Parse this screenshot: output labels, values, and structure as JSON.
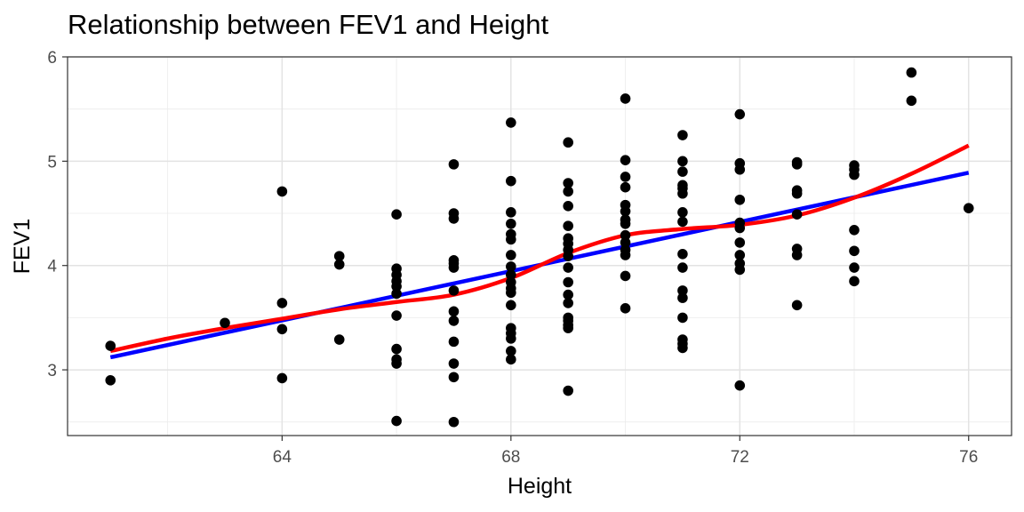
{
  "chart_data": {
    "type": "scatter",
    "title": "Relationship between FEV1 and Height",
    "xlabel": "Height",
    "ylabel": "FEV1",
    "xlim": [
      60.25,
      76.75
    ],
    "ylim": [
      2.37,
      6.0
    ],
    "xticks": [
      64,
      68,
      72,
      76
    ],
    "yticks": [
      3,
      4,
      5,
      6
    ],
    "grid": true,
    "legend": "none",
    "points": [
      [
        61,
        3.23
      ],
      [
        61,
        2.9
      ],
      [
        63,
        3.45
      ],
      [
        64,
        4.71
      ],
      [
        64,
        3.64
      ],
      [
        64,
        3.39
      ],
      [
        64,
        2.92
      ],
      [
        65,
        4.09
      ],
      [
        65,
        4.01
      ],
      [
        65,
        3.29
      ],
      [
        66,
        4.49
      ],
      [
        66,
        3.97
      ],
      [
        66,
        3.91
      ],
      [
        66,
        3.85
      ],
      [
        66,
        3.8
      ],
      [
        66,
        3.73
      ],
      [
        66,
        3.52
      ],
      [
        66,
        3.2
      ],
      [
        66,
        3.1
      ],
      [
        66,
        3.06
      ],
      [
        66,
        2.51
      ],
      [
        67,
        4.97
      ],
      [
        67,
        4.5
      ],
      [
        67,
        4.45
      ],
      [
        67,
        4.05
      ],
      [
        67,
        4.02
      ],
      [
        67,
        3.98
      ],
      [
        67,
        3.76
      ],
      [
        67,
        3.56
      ],
      [
        67,
        3.47
      ],
      [
        67,
        3.27
      ],
      [
        67,
        3.06
      ],
      [
        67,
        2.93
      ],
      [
        67,
        2.5
      ],
      [
        68,
        5.37
      ],
      [
        68,
        4.81
      ],
      [
        68,
        4.51
      ],
      [
        68,
        4.4
      ],
      [
        68,
        4.3
      ],
      [
        68,
        4.25
      ],
      [
        68,
        4.1
      ],
      [
        68,
        3.99
      ],
      [
        68,
        3.91
      ],
      [
        68,
        3.84
      ],
      [
        68,
        3.78
      ],
      [
        68,
        3.74
      ],
      [
        68,
        3.62
      ],
      [
        68,
        3.4
      ],
      [
        68,
        3.35
      ],
      [
        68,
        3.3
      ],
      [
        68,
        3.18
      ],
      [
        68,
        3.1
      ],
      [
        69,
        5.18
      ],
      [
        69,
        4.79
      ],
      [
        69,
        4.71
      ],
      [
        69,
        4.57
      ],
      [
        69,
        4.38
      ],
      [
        69,
        4.26
      ],
      [
        69,
        4.21
      ],
      [
        69,
        4.15
      ],
      [
        69,
        4.09
      ],
      [
        69,
        3.98
      ],
      [
        69,
        3.84
      ],
      [
        69,
        3.72
      ],
      [
        69,
        3.64
      ],
      [
        69,
        3.5
      ],
      [
        69,
        3.47
      ],
      [
        69,
        3.43
      ],
      [
        69,
        3.4
      ],
      [
        69,
        2.8
      ],
      [
        70,
        5.6
      ],
      [
        70,
        5.01
      ],
      [
        70,
        4.85
      ],
      [
        70,
        4.75
      ],
      [
        70,
        4.58
      ],
      [
        70,
        4.52
      ],
      [
        70,
        4.44
      ],
      [
        70,
        4.4
      ],
      [
        70,
        4.29
      ],
      [
        70,
        4.22
      ],
      [
        70,
        4.15
      ],
      [
        70,
        4.1
      ],
      [
        70,
        3.9
      ],
      [
        70,
        3.59
      ],
      [
        71,
        5.25
      ],
      [
        71,
        5.0
      ],
      [
        71,
        4.9
      ],
      [
        71,
        4.77
      ],
      [
        71,
        4.74
      ],
      [
        71,
        4.69
      ],
      [
        71,
        4.51
      ],
      [
        71,
        4.42
      ],
      [
        71,
        4.11
      ],
      [
        71,
        3.98
      ],
      [
        71,
        3.76
      ],
      [
        71,
        3.69
      ],
      [
        71,
        3.5
      ],
      [
        71,
        3.29
      ],
      [
        71,
        3.25
      ],
      [
        71,
        3.21
      ],
      [
        72,
        5.45
      ],
      [
        72,
        4.98
      ],
      [
        72,
        4.92
      ],
      [
        72,
        4.63
      ],
      [
        72,
        4.41
      ],
      [
        72,
        4.36
      ],
      [
        72,
        4.22
      ],
      [
        72,
        4.1
      ],
      [
        72,
        4.02
      ],
      [
        72,
        3.96
      ],
      [
        72,
        2.85
      ],
      [
        73,
        4.99
      ],
      [
        73,
        4.97
      ],
      [
        73,
        4.72
      ],
      [
        73,
        4.69
      ],
      [
        73,
        4.49
      ],
      [
        73,
        4.16
      ],
      [
        73,
        4.1
      ],
      [
        73,
        3.62
      ],
      [
        74,
        4.96
      ],
      [
        74,
        4.92
      ],
      [
        74,
        4.87
      ],
      [
        74,
        4.34
      ],
      [
        74,
        4.14
      ],
      [
        74,
        3.98
      ],
      [
        74,
        3.85
      ],
      [
        75,
        5.85
      ],
      [
        75,
        5.58
      ],
      [
        76,
        4.55
      ]
    ],
    "series": [
      {
        "type": "line",
        "color": "#0000ff",
        "x": [
          61,
          76
        ],
        "y": [
          3.12,
          4.89
        ]
      },
      {
        "type": "smooth",
        "color": "#ff0000",
        "x": [
          61,
          62,
          63,
          64,
          65,
          66,
          67,
          68,
          69,
          70,
          71,
          72,
          73,
          74,
          75,
          76
        ],
        "y": [
          3.18,
          3.3,
          3.4,
          3.49,
          3.58,
          3.65,
          3.72,
          3.88,
          4.12,
          4.29,
          4.35,
          4.39,
          4.48,
          4.65,
          4.88,
          5.15
        ]
      }
    ],
    "colors": {
      "points": "#000000",
      "linear_fit": "#0000ff",
      "loess_fit": "#ff0000"
    }
  }
}
